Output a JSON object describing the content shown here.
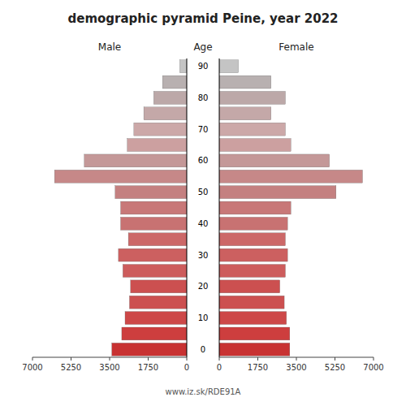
{
  "chart_data": {
    "type": "bar",
    "orientation": "horizontal",
    "title": "demographic pyramid Peine, year 2022",
    "y_label": "Age",
    "footer": "www.iz.sk/RDE91A",
    "categories": [
      "0",
      null,
      "10",
      null,
      "20",
      null,
      "30",
      null,
      "40",
      null,
      "50",
      null,
      "60",
      null,
      "70",
      null,
      "80",
      null,
      "90"
    ],
    "series": [
      {
        "name": "Male",
        "values": [
          3400,
          2950,
          2800,
          2600,
          2550,
          2900,
          3100,
          2650,
          3000,
          3000,
          3250,
          6000,
          4650,
          2700,
          2400,
          1950,
          1500,
          1100,
          320
        ],
        "colors": [
          "#c83232",
          "#cd3e3e",
          "#cd4848",
          "#cc5050",
          "#cc5050",
          "#cd5c5c",
          "#cc6060",
          "#cc6868",
          "#c87272",
          "#c87878",
          "#c48080",
          "#c68888",
          "#c49898",
          "#cca0a0",
          "#cca8a8",
          "#c4a8a8",
          "#bca8a8",
          "#b8b0b0",
          "#c4c4c4"
        ]
      },
      {
        "name": "Female",
        "values": [
          3200,
          3200,
          3050,
          2950,
          2750,
          3000,
          3100,
          3000,
          3100,
          3250,
          5300,
          6500,
          5000,
          3250,
          3000,
          2350,
          3000,
          2350,
          870
        ],
        "colors": [
          "#c83232",
          "#cd3e3e",
          "#cd4848",
          "#cc5050",
          "#cc5050",
          "#cd5c5c",
          "#cc6060",
          "#cc6868",
          "#c87272",
          "#c87878",
          "#c48080",
          "#c68888",
          "#c49898",
          "#cca0a0",
          "#cca8a8",
          "#c4a8a8",
          "#bca8a8",
          "#b8b0b0",
          "#c4c4c4"
        ]
      }
    ],
    "xlim": [
      0,
      7000
    ],
    "xticks": [
      0,
      1750,
      3500,
      5250,
      7000
    ],
    "grid": false
  }
}
